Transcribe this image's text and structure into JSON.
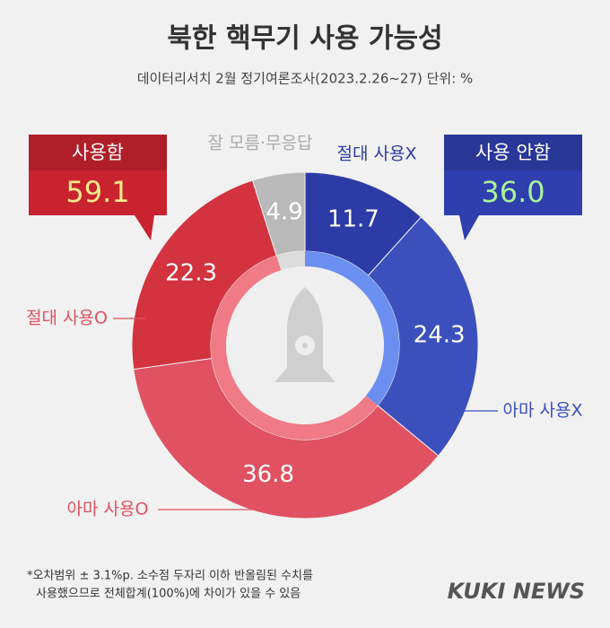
{
  "chart_data": {
    "type": "donut",
    "title": "북한 핵무기 사용 가능성",
    "subtitle": "데이터리서치 2월 정기여론조사(2023.2.26~27) 단위: %",
    "categories": [
      "절대 사용X",
      "아마 사용X",
      "아마 사용O",
      "절대 사용O",
      "잘 모름·무응답"
    ],
    "values": [
      11.7,
      24.3,
      36.8,
      22.3,
      4.9
    ],
    "colors": [
      "#2c3ba6",
      "#3c50bd",
      "#e05262",
      "#d3323f",
      "#b9b9b9"
    ],
    "totals": {
      "labels": [
        "사용 안함",
        "사용함"
      ],
      "values": [
        36,
        59.1
      ],
      "value_labels": [
        "36.0",
        "59.1"
      ],
      "colors": [
        "#2f3fae",
        "#c8232f"
      ]
    },
    "footnote": [
      "*오차범위 ± 3.1%p. 소수점 두자리 이하 반올림된 수치를",
      "사용했으므로 전체합계(100%)에 차이가 있을 수 있음"
    ],
    "source": "KUKI NEWS"
  }
}
